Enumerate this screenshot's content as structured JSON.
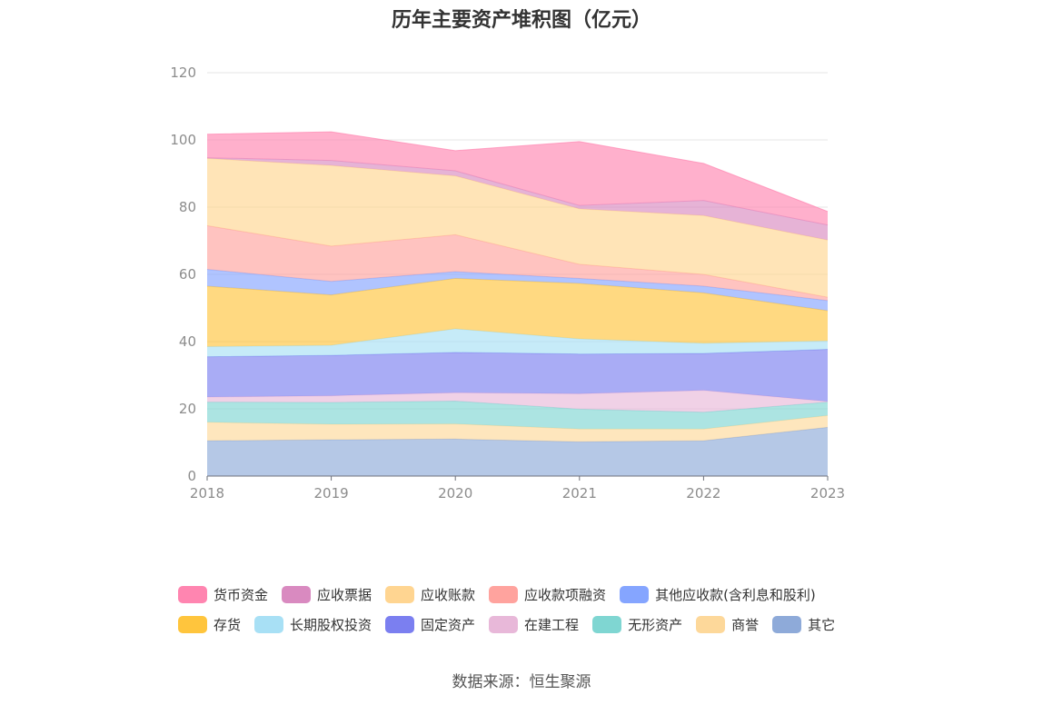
{
  "chart_data": {
    "type": "area",
    "stacked": true,
    "title": "历年主要资产堆积图（亿元）",
    "source": "数据来源：恒生聚源",
    "categories": [
      "2018",
      "2019",
      "2020",
      "2021",
      "2022",
      "2023"
    ],
    "ylim": [
      0,
      120
    ],
    "yticks": [
      0,
      20,
      40,
      60,
      80,
      100,
      120
    ],
    "grid": true,
    "legend_position": "bottom",
    "series": [
      {
        "name": "其它",
        "color": "#8eaad9",
        "values": [
          10.5,
          10.8,
          11.0,
          10.2,
          10.5,
          14.5
        ]
      },
      {
        "name": "商誉",
        "color": "#fdd89a",
        "values": [
          5.5,
          4.6,
          4.5,
          3.8,
          3.5,
          3.5
        ]
      },
      {
        "name": "无形资产",
        "color": "#7fd6d2",
        "values": [
          6.0,
          6.5,
          6.8,
          5.9,
          5.0,
          4.0
        ]
      },
      {
        "name": "在建工程",
        "color": "#e8b8d9",
        "values": [
          1.5,
          2.0,
          2.5,
          4.6,
          6.5,
          0.2
        ]
      },
      {
        "name": "固定资产",
        "color": "#7b7ff0",
        "values": [
          12.0,
          12.0,
          12.0,
          11.8,
          11.0,
          15.5
        ]
      },
      {
        "name": "长期股权投资",
        "color": "#a8e0f5",
        "values": [
          3.0,
          3.0,
          7.0,
          4.5,
          3.0,
          2.5
        ]
      },
      {
        "name": "存货",
        "color": "#ffc53d",
        "values": [
          18.0,
          15.0,
          15.0,
          16.5,
          15.0,
          9.0
        ]
      },
      {
        "name": "其他应收款(含利息和股利)",
        "color": "#85a5ff",
        "values": [
          5.0,
          4.0,
          2.0,
          1.5,
          2.0,
          3.0
        ]
      },
      {
        "name": "应收款项融资",
        "color": "#ffa39e",
        "values": [
          13.0,
          10.5,
          11.0,
          4.2,
          3.5,
          1.0
        ]
      },
      {
        "name": "应收账款",
        "color": "#ffd591",
        "values": [
          20.0,
          24.0,
          17.5,
          16.5,
          17.5,
          17.0
        ]
      },
      {
        "name": "应收票据",
        "color": "#d98ac0",
        "values": [
          0.2,
          1.5,
          1.5,
          1.0,
          4.5,
          4.5
        ]
      },
      {
        "name": "货币资金",
        "color": "#ff85b0",
        "values": [
          7.0,
          8.5,
          6.0,
          19.0,
          11.0,
          4.0
        ]
      }
    ],
    "legend_rows": [
      [
        "货币资金",
        "应收票据",
        "应收账款",
        "应收款项融资",
        "其他应收款(含利息和股利)"
      ],
      [
        "存货",
        "长期股权投资",
        "固定资产",
        "在建工程",
        "无形资产",
        "商誉",
        "其它"
      ]
    ]
  }
}
